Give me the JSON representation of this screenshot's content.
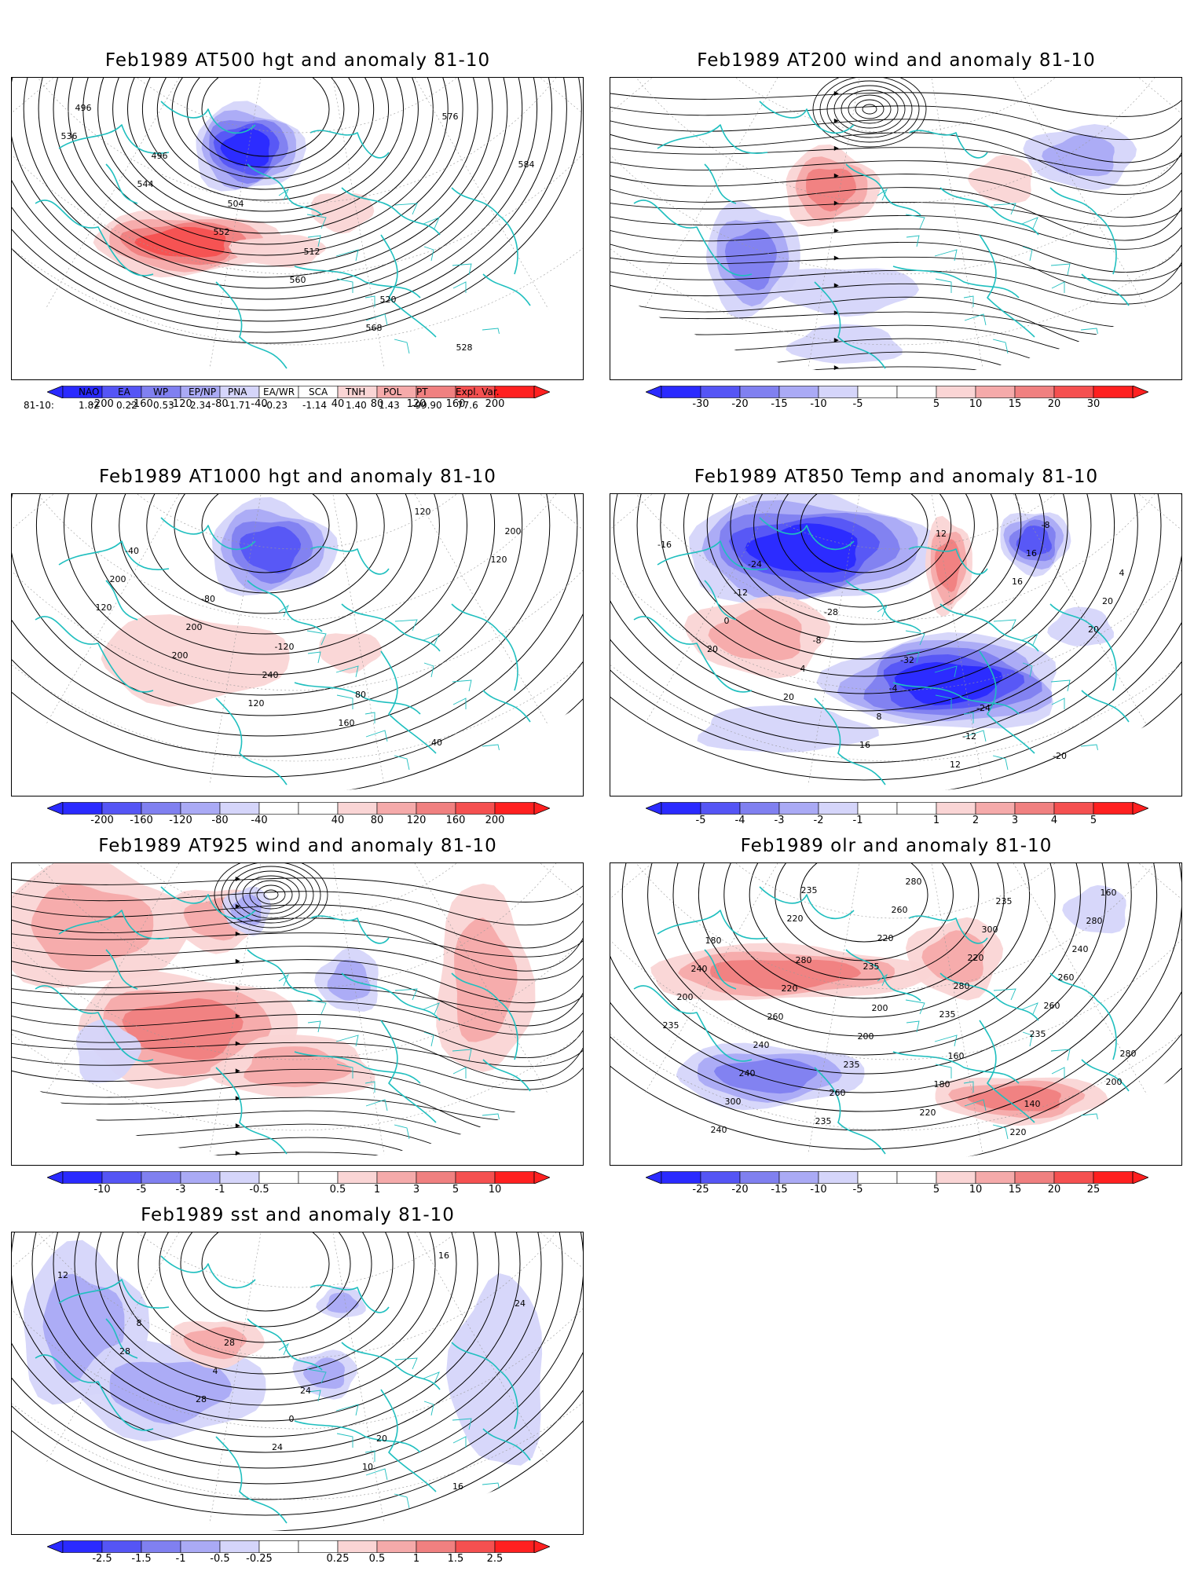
{
  "panels": [
    {
      "id": "p1",
      "title": "Feb1989 AT500 hgt and anomaly 81-10",
      "colorbar": [
        "-200",
        "-160",
        "-120",
        "-80",
        "-40",
        "40",
        "80",
        "120",
        "160",
        "200"
      ],
      "contour_labels": [
        "496",
        "496",
        "504",
        "512",
        "520",
        "528",
        "536",
        "544",
        "552",
        "560",
        "568",
        "576",
        "584"
      ]
    },
    {
      "id": "p2",
      "title": "Feb1989 AT200 wind and anomaly 81-10",
      "colorbar": [
        "-30",
        "-20",
        "-15",
        "-10",
        "-5",
        "5",
        "10",
        "15",
        "20",
        "30"
      ],
      "contour_labels": []
    },
    {
      "id": "p3",
      "title": "Feb1989 AT1000 hgt and anomaly 81-10",
      "colorbar": [
        "-200",
        "-160",
        "-120",
        "-80",
        "-40",
        "40",
        "80",
        "120",
        "160",
        "200"
      ],
      "contour_labels": [
        "-40",
        "-80",
        "-120",
        "80",
        "40",
        "200",
        "200",
        "200",
        "240",
        "160",
        "120",
        "120",
        "120",
        "200",
        "120"
      ]
    },
    {
      "id": "p4",
      "title": "Feb1989 AT850 Temp and anomaly 81-10",
      "colorbar": [
        "-5",
        "-4",
        "-3",
        "-2",
        "-1",
        "1",
        "2",
        "3",
        "4",
        "5"
      ],
      "contour_labels": [
        "-24",
        "-28",
        "-32",
        "-24",
        "-20",
        "-16",
        "-12",
        "-8",
        "-4",
        "-12",
        "-8",
        "4",
        "0",
        "4",
        "8",
        "12",
        "16",
        "20",
        "20",
        "20",
        "16",
        "12",
        "16",
        "20"
      ]
    },
    {
      "id": "p5",
      "title": "Feb1989 AT925 wind and anomaly 81-10",
      "colorbar": [
        "-10",
        "-5",
        "-3",
        "-1",
        "-0.5",
        "0.5",
        "1",
        "3",
        "5",
        "10"
      ],
      "contour_labels": []
    },
    {
      "id": "p6",
      "title": "Feb1989 olr and anomaly 81-10",
      "colorbar": [
        "-25",
        "-20",
        "-15",
        "-10",
        "-5",
        "5",
        "10",
        "15",
        "20",
        "25"
      ],
      "contour_labels": [
        "280",
        "200",
        "160",
        "140",
        "160",
        "180",
        "220",
        "200",
        "180",
        "220",
        "280",
        "240",
        "260",
        "235",
        "220",
        "235",
        "240",
        "200",
        "240",
        "260",
        "280",
        "300",
        "260",
        "235",
        "240",
        "235",
        "260",
        "220",
        "260",
        "280",
        "300",
        "235",
        "220",
        "280",
        "235",
        "200",
        "240",
        "220",
        "235",
        "235"
      ]
    },
    {
      "id": "p7",
      "title": "Feb1989 sst and anomaly 81-10",
      "colorbar": [
        "-2.5",
        "-1.5",
        "-1",
        "-0.5",
        "-0.25",
        "0.25",
        "0.5",
        "1",
        "1.5",
        "2.5"
      ],
      "contour_labels": [
        "28",
        "24",
        "20",
        "16",
        "12",
        "8",
        "4",
        "0",
        "10",
        "16",
        "24",
        "28",
        "28",
        "24"
      ]
    }
  ],
  "palette": {
    "neg": [
      "#2a2aff",
      "#5555f5",
      "#8080f0",
      "#aaaaf5",
      "#d5d5fa"
    ],
    "pos": [
      "#fad5d5",
      "#f5aaaa",
      "#f08080",
      "#f55050",
      "#ff2020"
    ],
    "coast": "#1fbfbf"
  },
  "indices": {
    "headers": [
      "NAO",
      "EA",
      "WP",
      "EP/NP",
      "PNA",
      "EA/WR",
      "SCA",
      "TNH",
      "POL",
      "PT",
      "Expl. Var."
    ],
    "row_label": "81-10:",
    "values": [
      "1.82",
      "0.22",
      "0.53",
      "2.34",
      "-1.71",
      "-0.23",
      "-1.14",
      "1.40",
      "1.43",
      "-99.90",
      "77.6"
    ]
  }
}
